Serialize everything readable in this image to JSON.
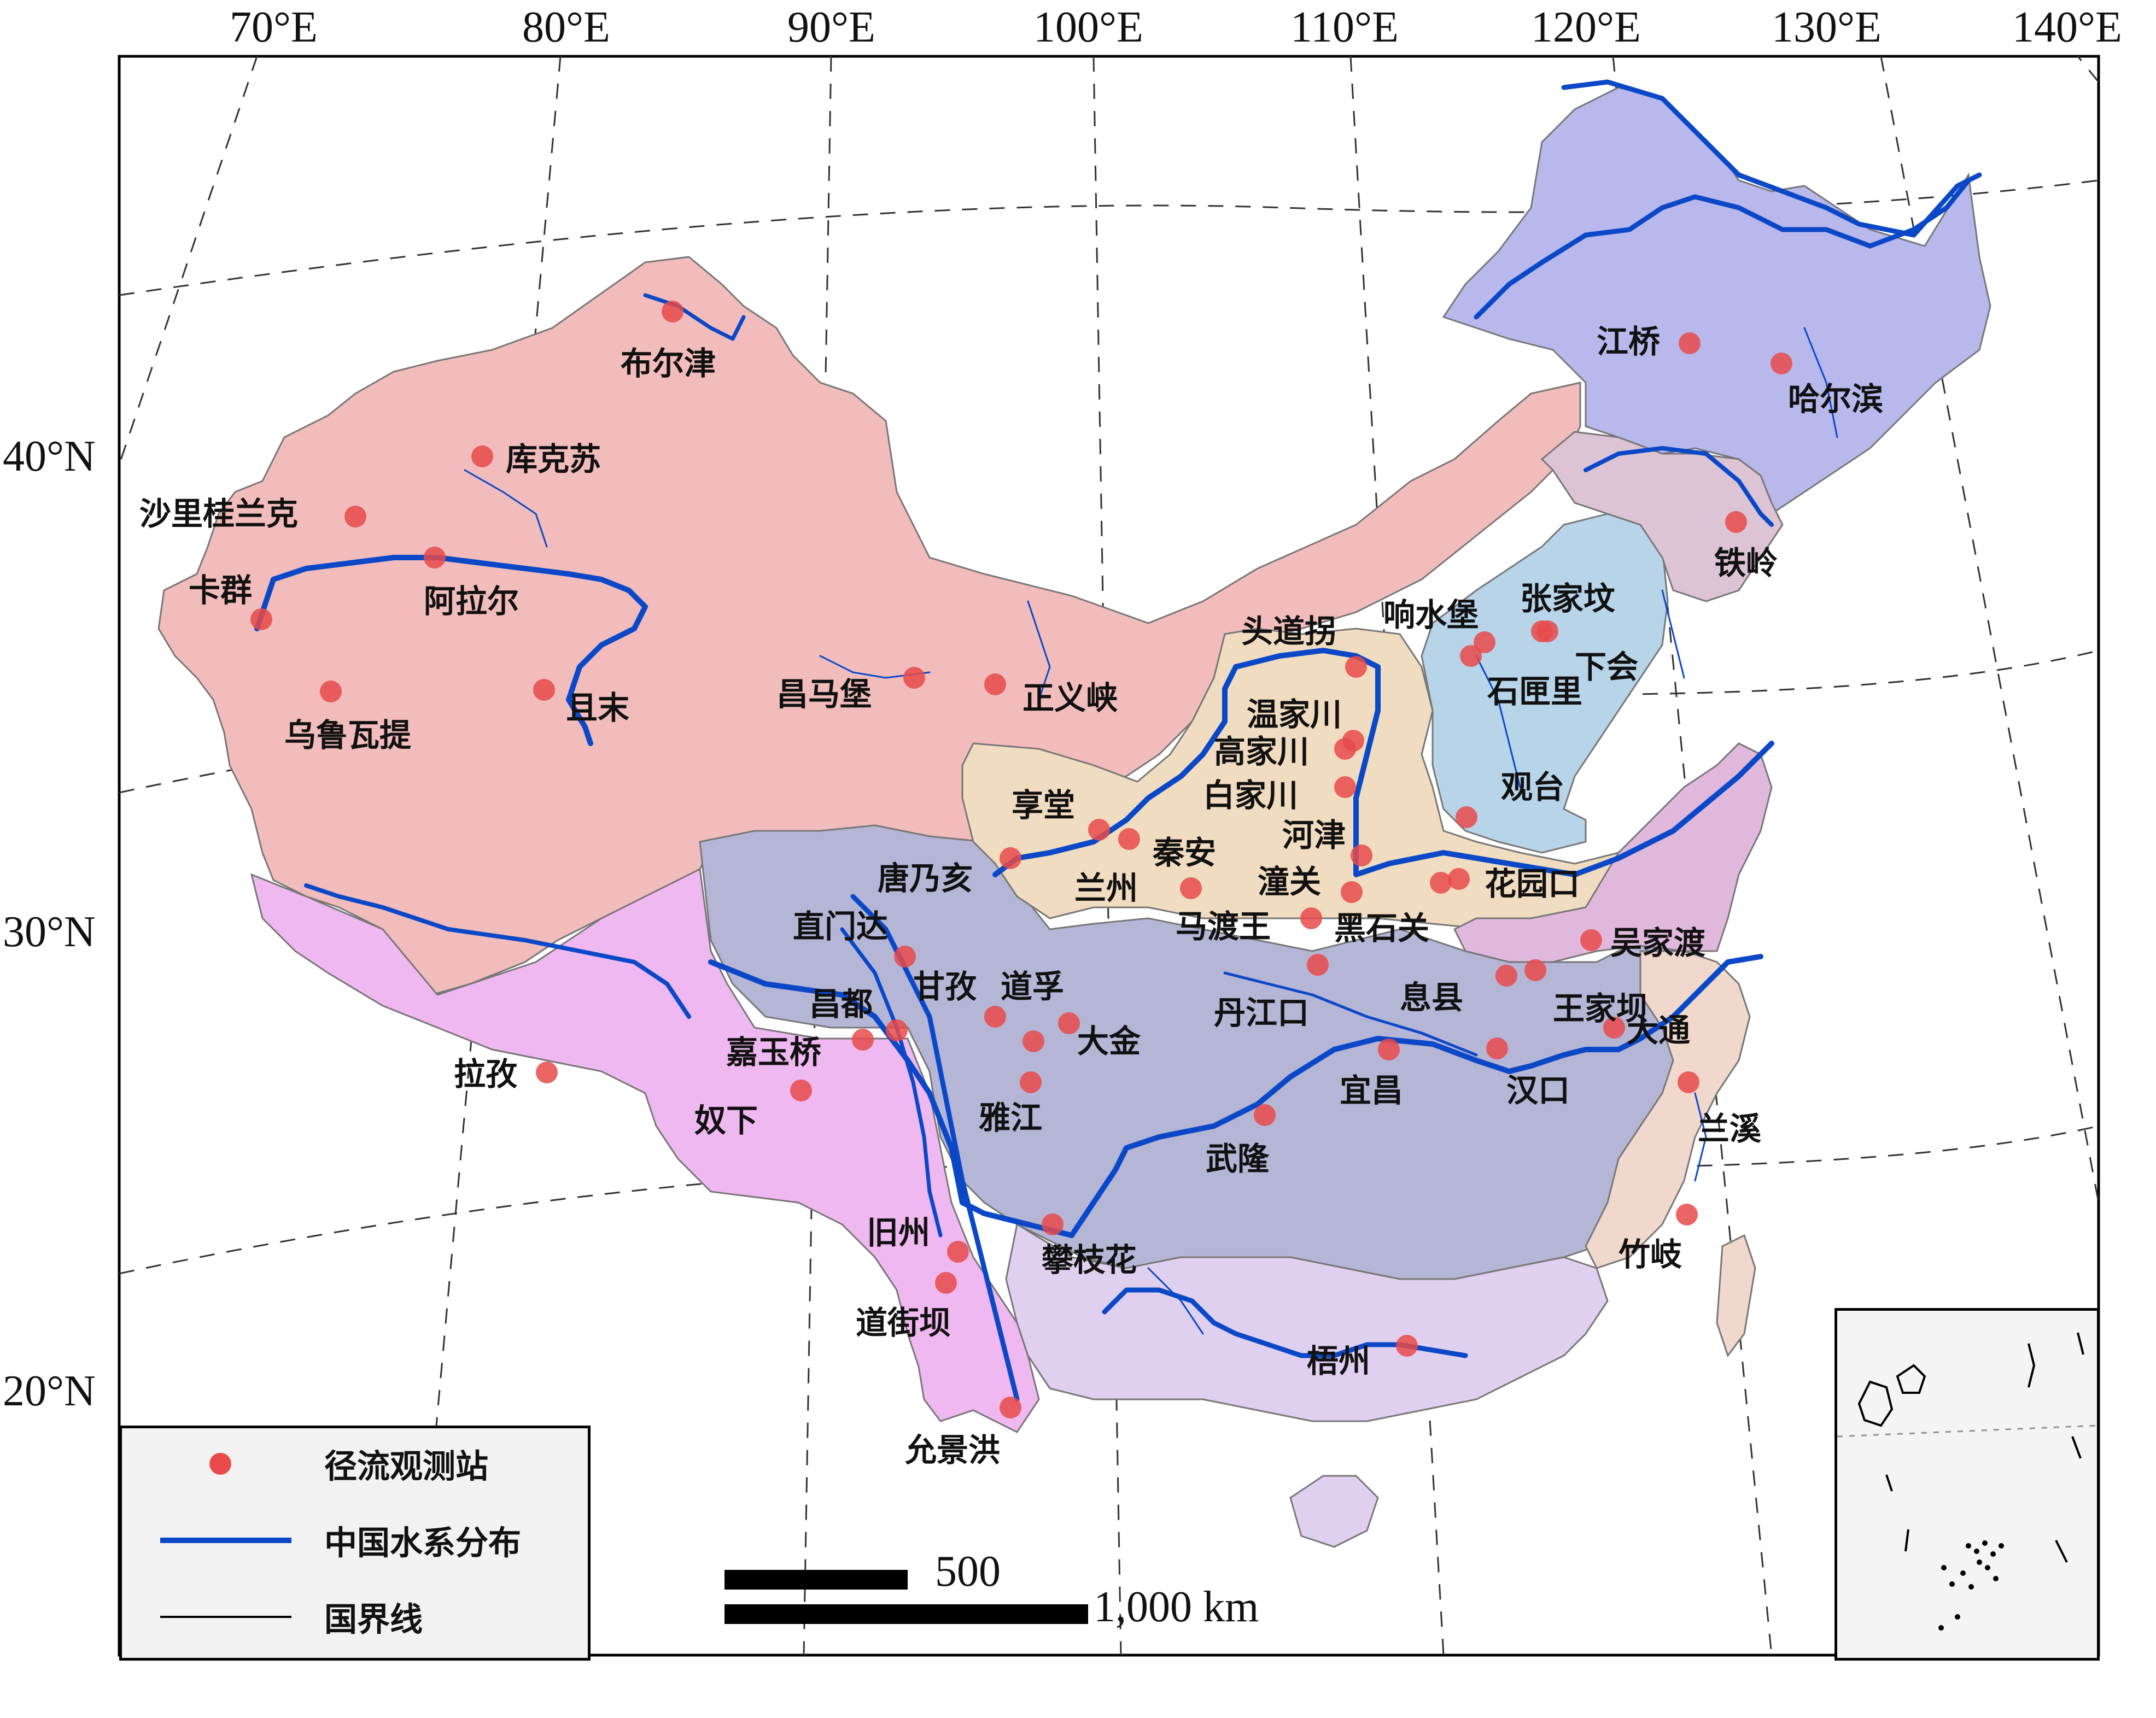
{
  "map": {
    "longitude_labels": [
      "70°E",
      "80°E",
      "90°E",
      "100°E",
      "110°E",
      "120°E",
      "130°E",
      "140°E"
    ],
    "latitude_labels": [
      "40°N",
      "30°N",
      "20°N"
    ],
    "colors": {
      "northwest_rivers": "#f2bcbc",
      "southwest_rivers": "#f0b8f0",
      "yangtze": "#b5b5d6",
      "yellow_river": "#f0dcc0",
      "haihe": "#b8d4e8",
      "songliao": "#b8b8ec",
      "liaohe": "#dcc4d4",
      "huaihe": "#e0b8dc",
      "pearl": "#e0d0f0",
      "southeast": "#f0d8cc",
      "river": "#0a48c8",
      "station": "#e84a4a"
    },
    "stations": [
      "布尔津",
      "库克苏",
      "沙里桂兰克",
      "卡群",
      "阿拉尔",
      "乌鲁瓦提",
      "且末",
      "昌马堡",
      "正义峡",
      "头道拐",
      "温家川",
      "高家川",
      "白家川",
      "河津",
      "享堂",
      "兰州",
      "唐乃亥",
      "秦安",
      "潼关",
      "马渡王",
      "黑石关",
      "响水堡",
      "张家坟",
      "石匣里",
      "下会",
      "观台",
      "花园口",
      "江桥",
      "哈尔滨",
      "铁岭",
      "直门达",
      "甘孜",
      "道孚",
      "昌都",
      "嘉玉桥",
      "大金",
      "雅江",
      "拉孜",
      "奴下",
      "丹江口",
      "息县",
      "王家坝",
      "吴家渡",
      "宜昌",
      "汉口",
      "大通",
      "兰溪",
      "武隆",
      "攀枝花",
      "旧州",
      "道街坝",
      "梧州",
      "竹岐",
      "允景洪"
    ]
  },
  "legend": {
    "items": [
      "径流观测站",
      "中国水系分布",
      "国界线"
    ]
  },
  "scale_bar": {
    "label_short": "500",
    "label_long": "1,000 km"
  }
}
